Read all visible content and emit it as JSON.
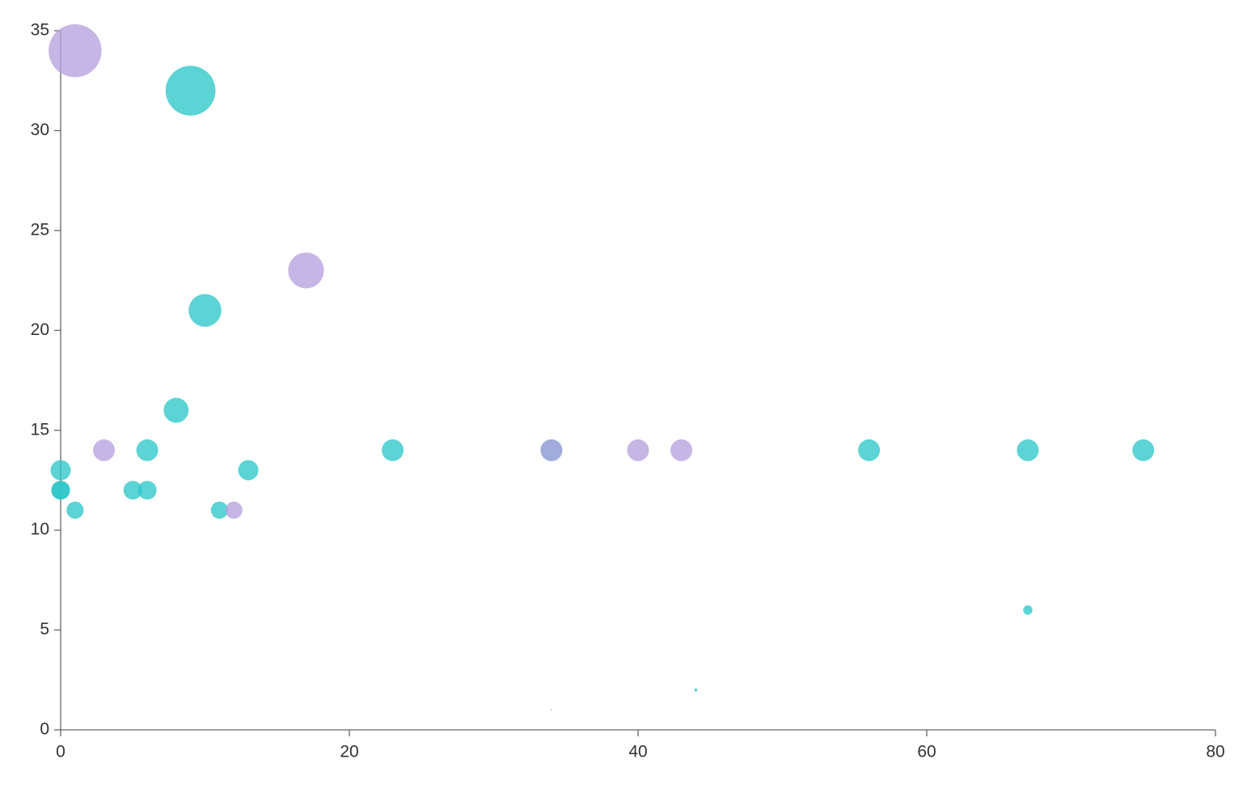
{
  "chart_data": {
    "type": "scatter",
    "series": [
      {
        "color": "#2ec7c9",
        "x": [
          0,
          0,
          0,
          1,
          5,
          6,
          6,
          8,
          9,
          10,
          11,
          13,
          23,
          34,
          56,
          67,
          75,
          67,
          44
        ],
        "values": [
          13,
          12,
          12,
          11,
          12,
          12,
          14,
          16,
          32,
          21,
          11,
          13,
          14,
          14,
          14,
          14,
          14,
          6,
          2
        ]
      },
      {
        "color": "#b6a2de",
        "x": [
          1,
          3,
          12,
          17,
          34,
          40,
          43,
          34
        ],
        "values": [
          34,
          14,
          11,
          23,
          14,
          14,
          14,
          1
        ]
      }
    ],
    "xlim": [
      0,
      80
    ],
    "xticks": [
      0,
      20,
      40,
      60,
      80
    ],
    "ylim": [
      0,
      35
    ],
    "yticks": [
      0,
      5,
      10,
      15,
      20,
      25,
      30,
      35
    ],
    "grid": false
  }
}
